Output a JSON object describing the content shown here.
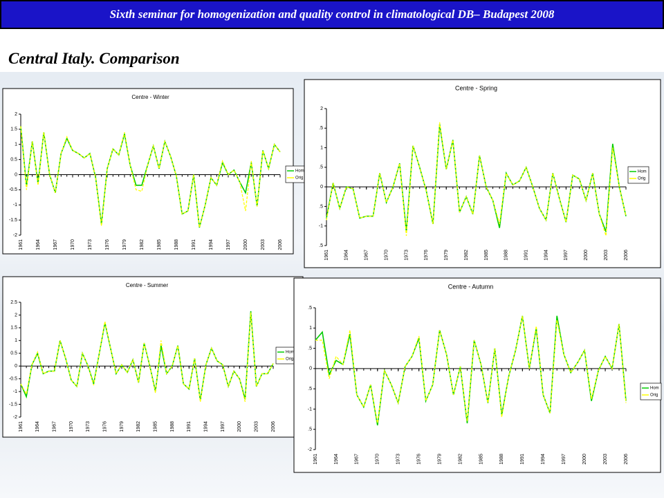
{
  "header": {
    "title": "Sixth seminar for homogenization and quality control  in climatological DB– Budapest 2008"
  },
  "heading": "Central Italy. Comparison",
  "chart_data": [
    {
      "type": "line",
      "title": "Centre - Winter",
      "x": [
        1961,
        1962,
        1963,
        1964,
        1965,
        1966,
        1967,
        1968,
        1969,
        1970,
        1971,
        1972,
        1973,
        1974,
        1975,
        1976,
        1977,
        1978,
        1979,
        1980,
        1981,
        1982,
        1983,
        1984,
        1985,
        1986,
        1987,
        1988,
        1989,
        1990,
        1991,
        1992,
        1993,
        1994,
        1995,
        1996,
        1997,
        1998,
        1999,
        2000,
        2001,
        2002,
        2003,
        2004,
        2005,
        2006
      ],
      "xlim": [
        1961,
        2006
      ],
      "xticks": [
        1961,
        1964,
        1967,
        1970,
        1973,
        1976,
        1979,
        1982,
        1985,
        1988,
        1991,
        1994,
        1997,
        2000,
        2003,
        2006
      ],
      "ylim": [
        -2,
        2
      ],
      "yticks": [
        2,
        1.5,
        1,
        0.5,
        0,
        -0.5,
        -1,
        -1.5,
        -2
      ],
      "series": [
        {
          "name": "Hom",
          "color": "#00cc00",
          "values": [
            1.6,
            -0.4,
            1.1,
            -0.3,
            1.4,
            0.0,
            -0.6,
            0.7,
            1.2,
            0.8,
            0.7,
            0.55,
            0.7,
            -0.1,
            -1.65,
            0.2,
            0.85,
            0.65,
            1.35,
            0.3,
            -0.35,
            -0.35,
            0.3,
            0.95,
            0.2,
            1.1,
            0.6,
            -0.05,
            -1.3,
            -1.2,
            0.0,
            -1.75,
            -1.0,
            -0.1,
            -0.35,
            0.4,
            0.0,
            0.15,
            -0.25,
            -0.6,
            0.4,
            -1.05,
            0.8,
            0.2,
            1.0,
            0.75
          ]
        },
        {
          "name": "Orig",
          "color": "#ffff00",
          "values": [
            1.6,
            -0.5,
            1.1,
            -0.35,
            1.4,
            0.0,
            -0.6,
            0.7,
            1.25,
            0.8,
            0.7,
            0.55,
            0.7,
            -0.1,
            -1.7,
            0.2,
            0.85,
            0.65,
            1.4,
            0.3,
            -0.5,
            -0.55,
            0.3,
            0.95,
            0.2,
            1.1,
            0.6,
            -0.05,
            -1.3,
            -1.2,
            0.0,
            -1.75,
            -1.0,
            -0.1,
            -0.35,
            0.45,
            0.0,
            0.15,
            -0.25,
            -1.2,
            0.45,
            -1.05,
            0.8,
            0.2,
            1.0,
            0.75
          ]
        }
      ]
    },
    {
      "type": "line",
      "title": "Centre - Spring",
      "x": [
        1961,
        1962,
        1963,
        1964,
        1965,
        1966,
        1967,
        1968,
        1969,
        1970,
        1971,
        1972,
        1973,
        1974,
        1975,
        1976,
        1977,
        1978,
        1979,
        1980,
        1981,
        1982,
        1983,
        1984,
        1985,
        1986,
        1987,
        1988,
        1989,
        1990,
        1991,
        1992,
        1993,
        1994,
        1995,
        1996,
        1997,
        1998,
        1999,
        2000,
        2001,
        2002,
        2003,
        2004,
        2005,
        2006
      ],
      "xlim": [
        1961,
        2006
      ],
      "xticks": [
        1961,
        1964,
        1967,
        1970,
        1973,
        1976,
        1979,
        1982,
        1985,
        1988,
        1991,
        1994,
        1997,
        2000,
        2003,
        2006
      ],
      "ylim": [
        -1.5,
        2
      ],
      "yticks": [
        2,
        {
          "value": 1.5,
          "label": ".5"
        },
        1,
        {
          "value": 0.5,
          "label": ".5"
        },
        0,
        {
          "value": -0.5,
          "label": ".5"
        },
        -1,
        {
          "value": -1.5,
          "label": ".5"
        }
      ],
      "series": [
        {
          "name": "Hom",
          "color": "#00cc00",
          "values": [
            -0.8,
            0.1,
            -0.55,
            0.0,
            -0.05,
            -0.8,
            -0.75,
            -0.75,
            0.35,
            -0.4,
            0.0,
            0.6,
            -1.15,
            1.05,
            0.5,
            -0.1,
            -0.95,
            1.6,
            0.45,
            1.2,
            -0.65,
            -0.25,
            -0.7,
            0.8,
            0.0,
            -0.35,
            -1.05,
            0.35,
            0.05,
            0.15,
            0.5,
            0.0,
            -0.55,
            -0.85,
            0.35,
            -0.3,
            -0.9,
            0.3,
            0.2,
            -0.35,
            0.35,
            -0.7,
            -1.15,
            1.1,
            0.0,
            -0.75
          ]
        },
        {
          "name": "Orig",
          "color": "#ffff00",
          "values": [
            -0.85,
            0.1,
            -0.55,
            0.0,
            -0.05,
            -0.8,
            -0.75,
            -0.75,
            0.35,
            -0.4,
            0.0,
            0.6,
            -1.25,
            1.05,
            0.5,
            -0.1,
            -0.95,
            1.65,
            0.45,
            1.2,
            -0.65,
            -0.25,
            -0.7,
            0.8,
            0.0,
            -0.35,
            -0.95,
            0.35,
            0.05,
            0.15,
            0.5,
            0.0,
            -0.55,
            -0.85,
            0.35,
            -0.3,
            -0.9,
            0.3,
            0.2,
            -0.35,
            0.35,
            -0.7,
            -1.25,
            1.0,
            0.0,
            -0.75
          ]
        }
      ]
    },
    {
      "type": "line",
      "title": "Centre - Summer",
      "x": [
        1961,
        1962,
        1963,
        1964,
        1965,
        1966,
        1967,
        1968,
        1969,
        1970,
        1971,
        1972,
        1973,
        1974,
        1975,
        1976,
        1977,
        1978,
        1979,
        1980,
        1981,
        1982,
        1983,
        1984,
        1985,
        1986,
        1987,
        1988,
        1989,
        1990,
        1991,
        1992,
        1993,
        1994,
        1995,
        1996,
        1997,
        1998,
        1999,
        2000,
        2001,
        2002,
        2003,
        2004,
        2005,
        2006
      ],
      "xlim": [
        1961,
        2006
      ],
      "xticks": [
        1961,
        1964,
        1967,
        1970,
        1973,
        1976,
        1979,
        1982,
        1985,
        1988,
        1991,
        1994,
        1997,
        2000,
        2003,
        2006
      ],
      "ylim": [
        -2,
        2.5
      ],
      "yticks": [
        2.5,
        2,
        1.5,
        1,
        0.5,
        0,
        -0.5,
        -1,
        -1.5,
        -2
      ],
      "series": [
        {
          "name": "Hom",
          "color": "#00cc00",
          "values": [
            -0.7,
            -1.2,
            0.05,
            0.5,
            -0.3,
            -0.2,
            -0.2,
            1.0,
            0.3,
            -0.55,
            -0.8,
            0.5,
            0.0,
            -0.7,
            0.5,
            1.7,
            0.7,
            -0.3,
            0.05,
            -0.25,
            0.25,
            -0.65,
            0.9,
            0.0,
            -1.0,
            0.8,
            -0.3,
            0.0,
            0.8,
            -0.7,
            -0.9,
            0.3,
            -1.35,
            0.05,
            0.7,
            0.2,
            0.05,
            -0.8,
            -0.2,
            -0.5,
            -1.3,
            2.15,
            -0.8,
            -0.3,
            -0.3,
            0.1
          ]
        },
        {
          "name": "Orig",
          "color": "#ffff00",
          "values": [
            -0.7,
            -1.1,
            0.05,
            0.55,
            -0.3,
            -0.2,
            -0.2,
            1.0,
            0.3,
            -0.55,
            -0.8,
            0.5,
            0.0,
            -0.75,
            0.5,
            1.75,
            0.7,
            -0.3,
            0.05,
            -0.25,
            0.25,
            -0.65,
            0.9,
            0.0,
            -1.05,
            1.0,
            -0.3,
            0.0,
            0.8,
            -0.7,
            -0.9,
            0.3,
            -1.4,
            0.05,
            0.7,
            0.2,
            0.05,
            -0.8,
            -0.2,
            -0.5,
            -1.4,
            2.1,
            -0.8,
            -0.3,
            -0.3,
            0.1
          ]
        }
      ]
    },
    {
      "type": "line",
      "title": "Centre - Autumn",
      "x": [
        1961,
        1962,
        1963,
        1964,
        1965,
        1966,
        1967,
        1968,
        1969,
        1970,
        1971,
        1972,
        1973,
        1974,
        1975,
        1976,
        1977,
        1978,
        1979,
        1980,
        1981,
        1982,
        1983,
        1984,
        1985,
        1986,
        1987,
        1988,
        1989,
        1990,
        1991,
        1992,
        1993,
        1994,
        1995,
        1996,
        1997,
        1998,
        1999,
        2000,
        2001,
        2002,
        2003,
        2004,
        2005,
        2006
      ],
      "xlim": [
        1961,
        2006
      ],
      "xticks": [
        1961,
        1964,
        1967,
        1970,
        1973,
        1976,
        1979,
        1982,
        1985,
        1988,
        1991,
        1994,
        1997,
        2000,
        2003,
        2006
      ],
      "ylim": [
        -2,
        1.5
      ],
      "yticks": [
        {
          "value": 1.5,
          "label": ".5"
        },
        1,
        {
          "value": 0.5,
          "label": ".5"
        },
        0,
        {
          "value": -0.5,
          "label": ".5"
        },
        -1,
        {
          "value": -1.5,
          "label": ".5"
        },
        -2
      ],
      "series": [
        {
          "name": "Hom",
          "color": "#00cc00",
          "values": [
            0.7,
            0.9,
            -0.15,
            0.2,
            0.1,
            0.85,
            -0.65,
            -0.95,
            -0.4,
            -1.4,
            -0.05,
            -0.4,
            -0.85,
            0.05,
            0.3,
            0.75,
            -0.8,
            -0.4,
            0.95,
            0.35,
            -0.65,
            0.05,
            -1.35,
            0.7,
            0.1,
            -0.85,
            0.5,
            -1.15,
            -0.2,
            0.45,
            1.3,
            0.0,
            1.0,
            -0.65,
            -1.1,
            1.3,
            0.35,
            -0.1,
            0.15,
            0.45,
            -0.8,
            -0.05,
            0.3,
            0.0,
            1.1,
            -0.8
          ]
        },
        {
          "name": "Orig",
          "color": "#ffff00",
          "values": [
            0.7,
            0.7,
            -0.25,
            0.3,
            0.1,
            0.95,
            -0.65,
            -0.95,
            -0.4,
            -1.35,
            -0.05,
            -0.4,
            -0.85,
            0.05,
            0.3,
            0.8,
            -0.8,
            -0.4,
            0.95,
            0.35,
            -0.65,
            0.05,
            -1.3,
            0.7,
            0.1,
            -0.85,
            0.5,
            -1.2,
            -0.2,
            0.45,
            1.3,
            0.0,
            1.05,
            -0.65,
            -1.1,
            1.2,
            0.35,
            -0.1,
            0.15,
            0.45,
            -0.75,
            -0.05,
            0.3,
            0.0,
            1.1,
            -0.85
          ]
        }
      ]
    }
  ]
}
